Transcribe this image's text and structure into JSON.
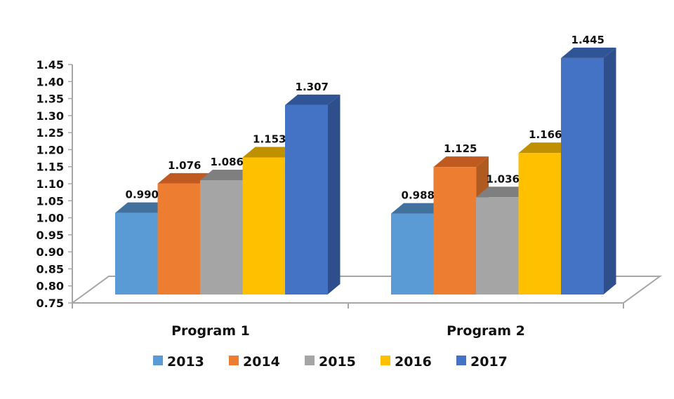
{
  "chart_data": {
    "type": "bar",
    "style": "3d-clustered-column",
    "title": "",
    "xlabel": "",
    "ylabel": "",
    "categories": [
      "Program 1",
      "Program 2"
    ],
    "series": [
      {
        "name": "2013",
        "values": [
          0.99,
          0.988
        ],
        "labels": [
          "0.990",
          "0.988"
        ],
        "color": "#5B9BD5",
        "top_color": "#41719C",
        "side_color": "#41719C"
      },
      {
        "name": "2014",
        "values": [
          1.076,
          1.125
        ],
        "labels": [
          "1.076",
          "1.125"
        ],
        "color": "#ED7D31",
        "top_color": "#C15A21",
        "side_color": "#AE5A21"
      },
      {
        "name": "2015",
        "values": [
          1.086,
          1.036
        ],
        "labels": [
          "1.086",
          "1.036"
        ],
        "color": "#A5A5A5",
        "top_color": "#7F7F7F",
        "side_color": "#787878"
      },
      {
        "name": "2016",
        "values": [
          1.153,
          1.166
        ],
        "labels": [
          "1.153",
          "1.166"
        ],
        "color": "#FFC000",
        "top_color": "#BF9000",
        "side_color": "#BC8C00"
      },
      {
        "name": "2017",
        "values": [
          1.307,
          1.445
        ],
        "labels": [
          "1.307",
          "1.445"
        ],
        "color": "#4472C4",
        "top_color": "#2F5597",
        "side_color": "#2F4F8C"
      }
    ],
    "ylim": [
      0.75,
      1.45
    ],
    "yticks": [
      "0.75",
      "0.80",
      "0.85",
      "0.90",
      "0.95",
      "1.00",
      "1.05",
      "1.10",
      "1.15",
      "1.20",
      "1.25",
      "1.30",
      "1.35",
      "1.40",
      "1.45"
    ],
    "grid": false,
    "legend_position": "bottom",
    "data_labels": true
  }
}
